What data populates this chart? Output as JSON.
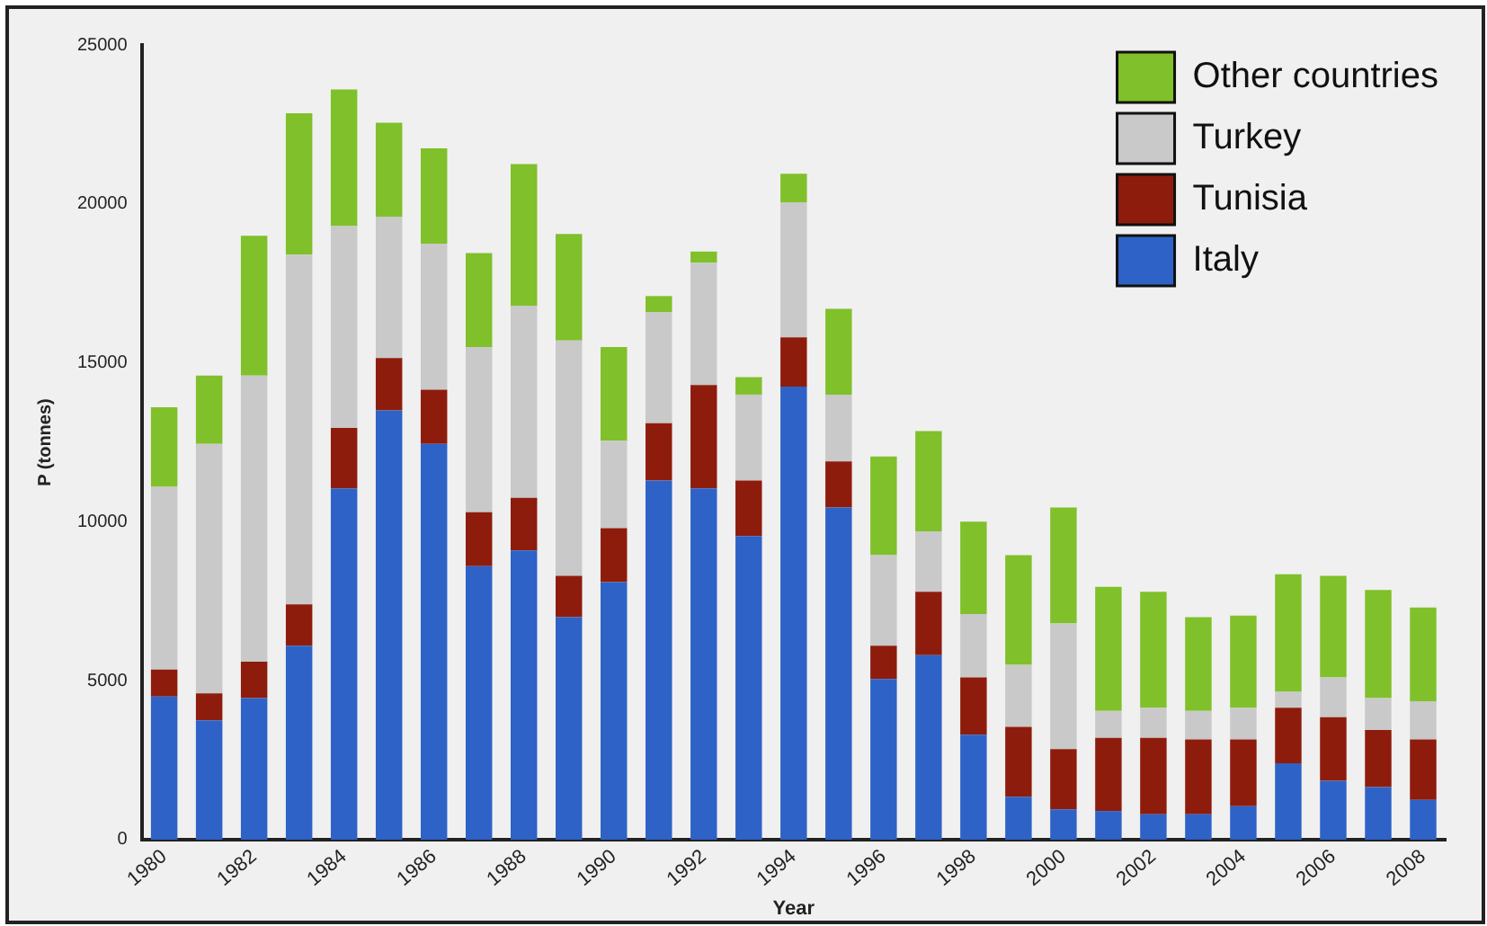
{
  "chart_data": {
    "type": "bar",
    "stacked": true,
    "xlabel": "Year",
    "ylabel": "P (tonnes)",
    "categories": [
      "1980",
      null,
      "1982",
      null,
      "1984",
      null,
      "1986",
      null,
      "1988",
      null,
      "1990",
      null,
      "1992",
      null,
      "1994",
      null,
      "1996",
      null,
      "1998",
      null,
      "2000",
      null,
      "2002",
      null,
      "2004",
      null,
      "2006",
      null,
      "2008"
    ],
    "series": [
      {
        "name": "Italy",
        "color": "#2e62c6",
        "values": [
          4500,
          3750,
          4450,
          6100,
          11050,
          13500,
          12450,
          8600,
          9100,
          7000,
          8100,
          11300,
          11050,
          9550,
          14250,
          10450,
          5050,
          5800,
          3300,
          1350,
          950,
          900,
          800,
          800,
          1050,
          2400,
          1850,
          1650,
          1250
        ]
      },
      {
        "name": "Tunisia",
        "color": "#8e1c0c",
        "values": [
          850,
          850,
          1150,
          1300,
          1900,
          1650,
          1700,
          1700,
          1650,
          1300,
          1700,
          1800,
          3250,
          1750,
          1550,
          1450,
          1050,
          2000,
          1800,
          2200,
          1900,
          2300,
          2400,
          2350,
          2100,
          1750,
          2000,
          1800,
          1900
        ]
      },
      {
        "name": "Turkey",
        "color": "#c9c9c9",
        "values": [
          5750,
          7850,
          9000,
          11000,
          6350,
          4450,
          4600,
          5200,
          6050,
          7400,
          2750,
          3500,
          3850,
          2700,
          4250,
          2100,
          2850,
          1900,
          2000,
          1950,
          3950,
          850,
          950,
          900,
          1000,
          500,
          1250,
          1000,
          1200
        ]
      },
      {
        "name": "Other countries",
        "color": "#80c02a",
        "values": [
          2500,
          2150,
          4400,
          4450,
          4300,
          2950,
          3000,
          2950,
          4450,
          3350,
          2950,
          500,
          350,
          550,
          900,
          2700,
          3100,
          3150,
          2900,
          3450,
          3650,
          3900,
          3650,
          2950,
          2900,
          3700,
          3200,
          3400,
          2950
        ]
      }
    ],
    "ylim": [
      0,
      25000
    ],
    "yticks": [
      0,
      5000,
      10000,
      15000,
      20000,
      25000
    ],
    "grid": false,
    "legend": "top right"
  }
}
